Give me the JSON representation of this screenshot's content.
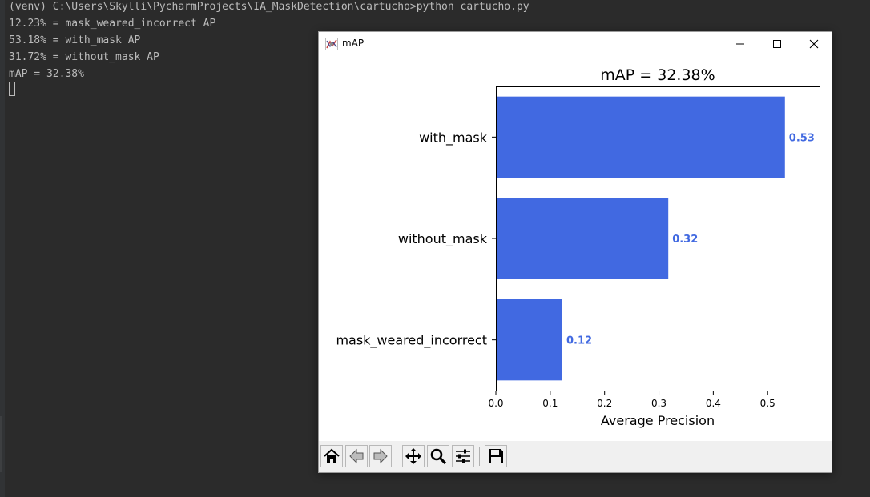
{
  "terminal": {
    "lines": [
      "(venv) C:\\Users\\Skylli\\PycharmProjects\\IA_MaskDetection\\cartucho>python cartucho.py",
      "12.23% = mask_weared_incorrect AP",
      "53.18% = with_mask AP",
      "31.72% = without_mask AP",
      "mAP = 32.38%"
    ]
  },
  "window": {
    "title": "mAP",
    "controls": [
      "minimize-icon",
      "maximize-icon",
      "close-icon"
    ]
  },
  "chart_data": {
    "type": "bar",
    "orientation": "horizontal",
    "title": "mAP = 32.38%",
    "xlabel": "Average Precision",
    "ylabel": "",
    "categories": [
      "mask_weared_incorrect",
      "without_mask",
      "with_mask"
    ],
    "values": [
      0.1223,
      0.3172,
      0.5318
    ],
    "data_labels": [
      "0.12",
      "0.32",
      "0.53"
    ],
    "xlim": [
      0,
      0.5955
    ],
    "xticks": [
      0.0,
      0.1,
      0.2,
      0.3,
      0.4,
      0.5
    ],
    "xtick_labels": [
      "0.0",
      "0.1",
      "0.2",
      "0.3",
      "0.4",
      "0.5"
    ],
    "bar_color": "#4169e1",
    "label_color": "#4169e1",
    "grid": false,
    "legend": "none"
  },
  "toolbar": {
    "buttons": [
      "home-icon",
      "back-icon",
      "forward-icon",
      "pan-icon",
      "zoom-icon",
      "configure-subplots-icon",
      "save-icon"
    ]
  }
}
